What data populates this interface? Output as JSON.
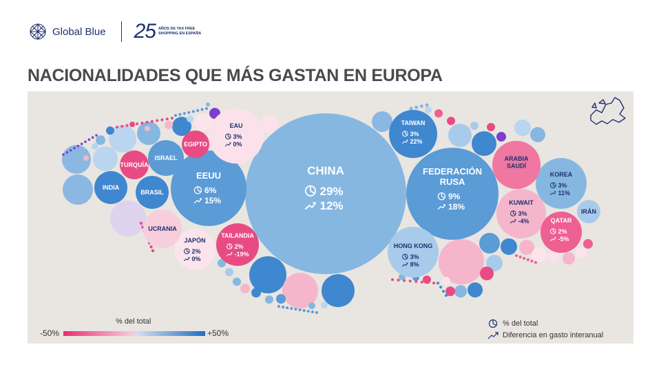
{
  "brand": {
    "name": "Global Blue",
    "anniversary_number": "25",
    "anniversary_tagline": "AÑOS DE TAX FREE SHOPPING EN ESPAÑA"
  },
  "title": "NACIONALIDADES QUE MÁS GASTAN EN EUROPA",
  "legend": {
    "scale_title": "% del total",
    "min_label": "-50%",
    "max_label": "+50%",
    "share_label": "% del total",
    "growth_label": "Diferencia en gasto interanual"
  },
  "colors": {
    "panel": "#e9e5e1",
    "neg": "#e5306f",
    "pos": "#1f6fc4"
  },
  "chart_data": {
    "type": "bubble",
    "title": "NACIONALIDADES QUE MÁS GASTAN EN EUROPA",
    "size_metric": "% del total",
    "color_metric": "Diferencia en gasto interanual",
    "color_scale": [
      "-50%",
      "+50%"
    ],
    "countries": [
      {
        "name": "CHINA",
        "share": "29%",
        "growth": "12%"
      },
      {
        "name": "FEDERACIÓN RUSA",
        "share": "9%",
        "growth": "18%"
      },
      {
        "name": "EEUU",
        "share": "6%",
        "growth": "15%"
      },
      {
        "name": "TAIWAN",
        "share": "3%",
        "growth": "22%"
      },
      {
        "name": "EAU",
        "share": "3%",
        "growth": "0%"
      },
      {
        "name": "HONG KONG",
        "share": "3%",
        "growth": "8%"
      },
      {
        "name": "KOREA",
        "share": "3%",
        "growth": "11%"
      },
      {
        "name": "KUWAIT",
        "share": "3%",
        "growth": "-4%"
      },
      {
        "name": "JAPÓN",
        "share": "2%",
        "growth": "0%"
      },
      {
        "name": "TAILANDIA",
        "share": "2%",
        "growth": "-19%"
      },
      {
        "name": "QATAR",
        "share": "2%",
        "growth": "-5%"
      },
      {
        "name": "ARABIA SAUDÍ",
        "share": "",
        "growth": ""
      },
      {
        "name": "IRÁN",
        "share": "",
        "growth": ""
      },
      {
        "name": "INDIA",
        "share": "",
        "growth": ""
      },
      {
        "name": "BRASIL",
        "share": "",
        "growth": ""
      },
      {
        "name": "ISRAEL",
        "share": "",
        "growth": ""
      },
      {
        "name": "TURQUÍA",
        "share": "",
        "growth": ""
      },
      {
        "name": "EGIPTO",
        "share": "",
        "growth": ""
      },
      {
        "name": "UCRANIA",
        "share": "",
        "growth": ""
      }
    ]
  }
}
